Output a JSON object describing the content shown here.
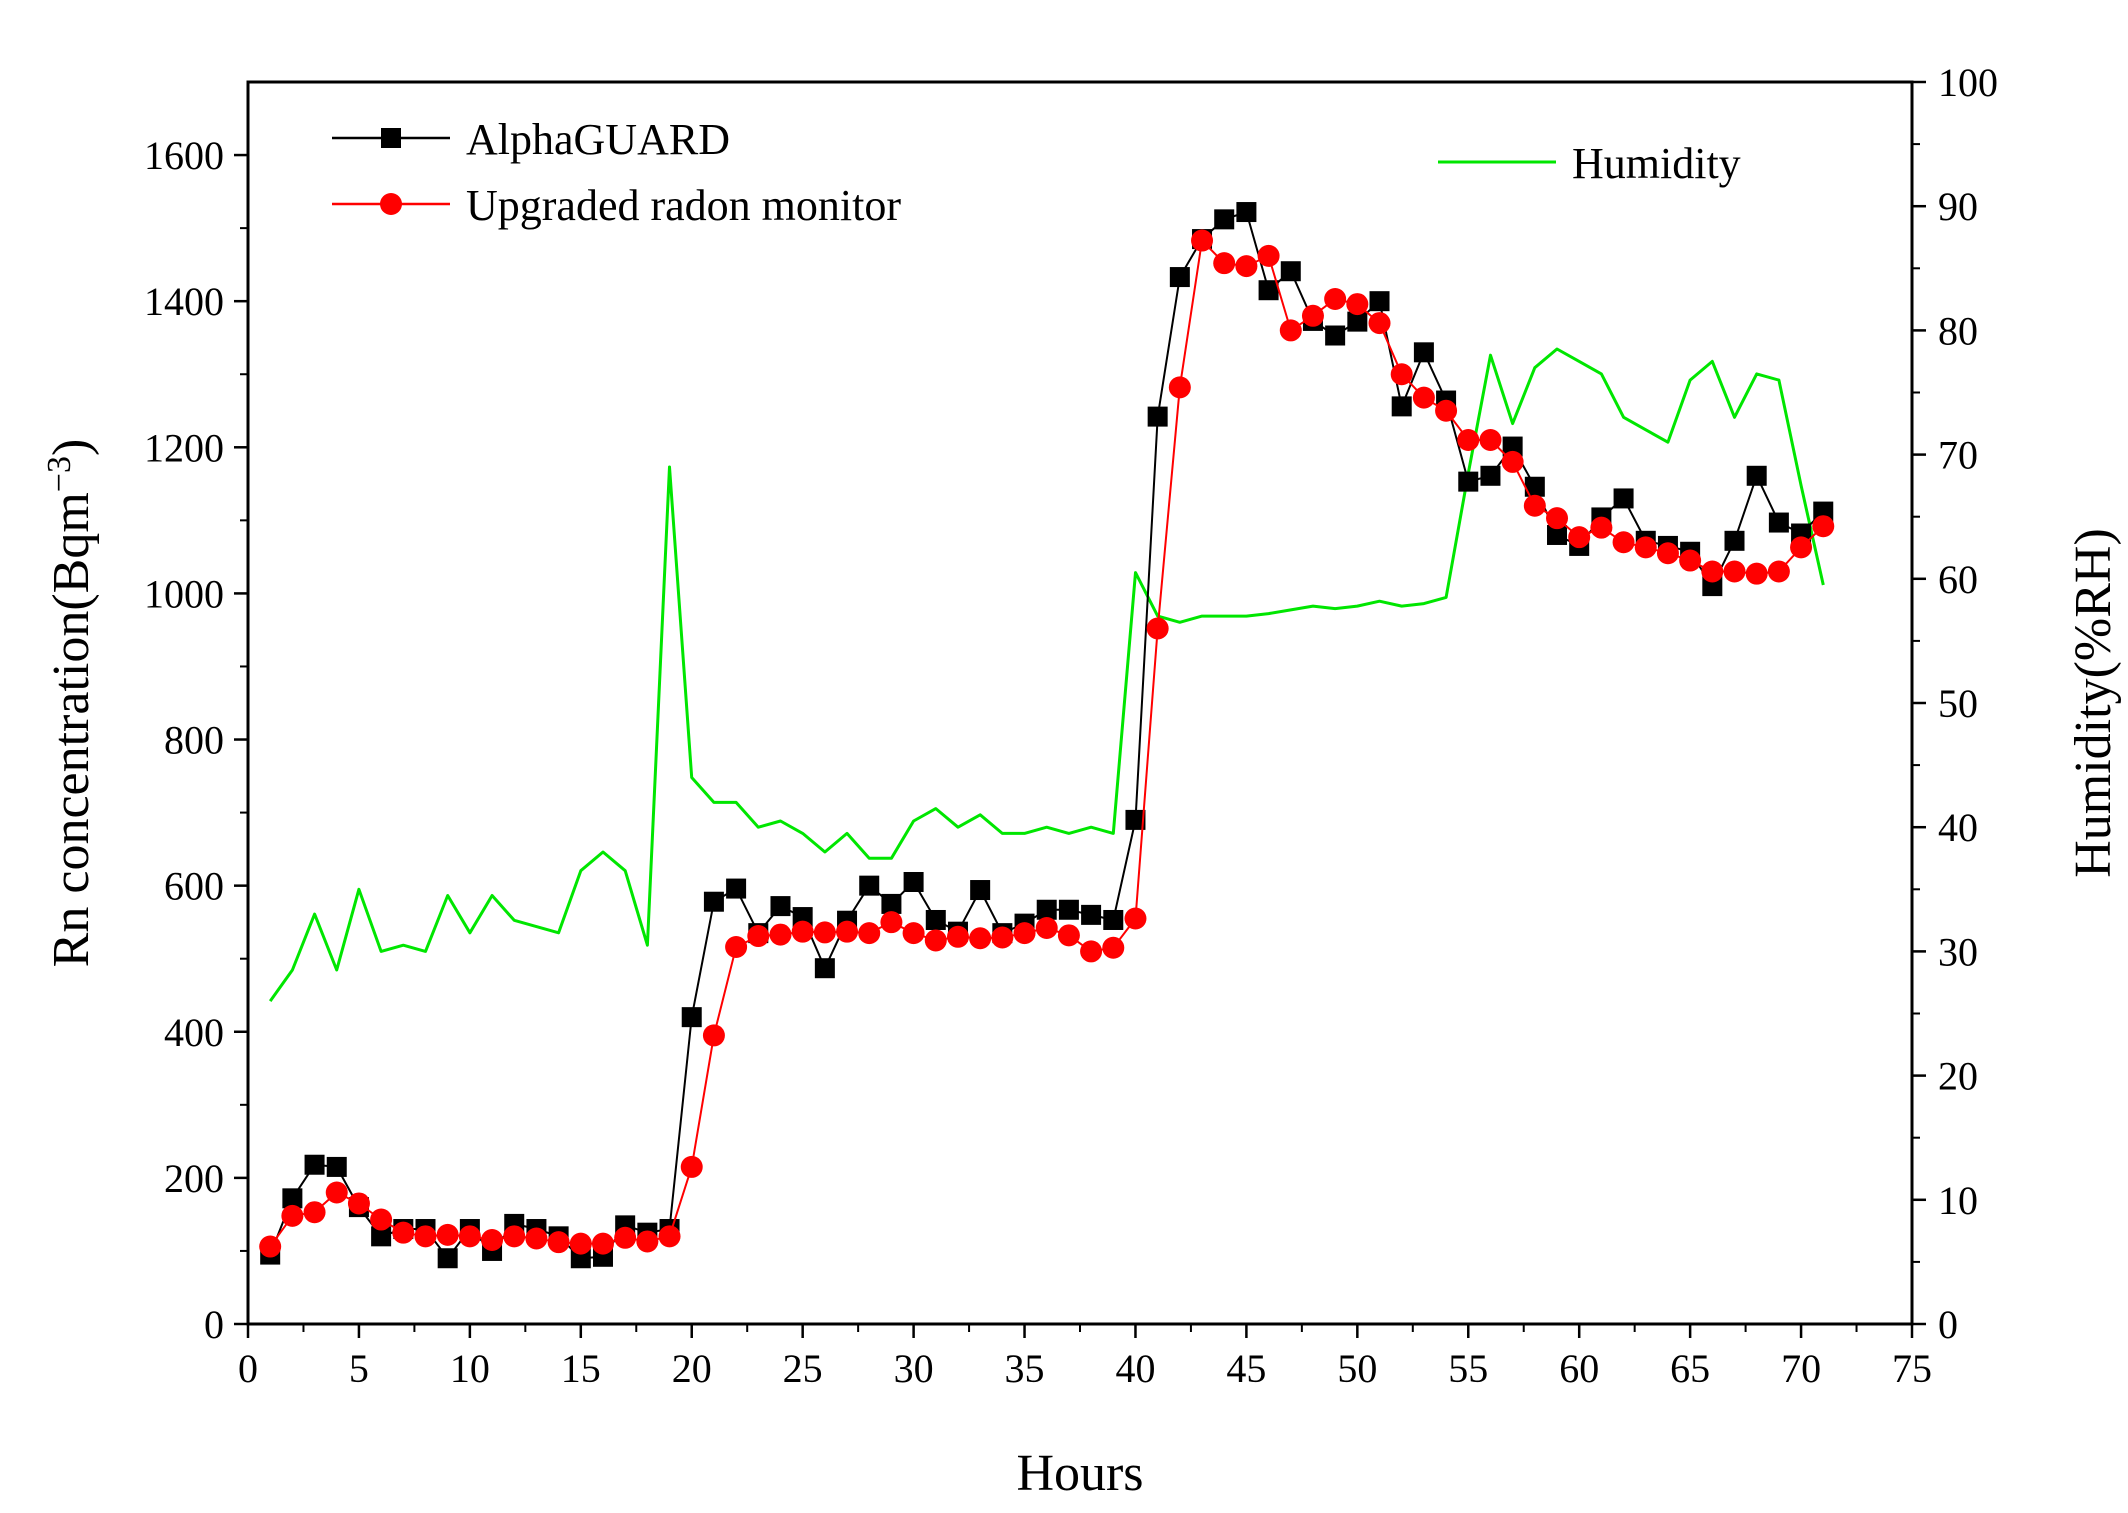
{
  "chart_data": {
    "type": "line",
    "xlabel": "Hours",
    "ylabel_left_prefix": "Rn concentration(Bqm",
    "ylabel_left_exponent": "−3",
    "ylabel_left_suffix": ")",
    "ylabel_right": "Humidity(%RH)",
    "xlim": [
      0,
      75
    ],
    "ylim_left": [
      0,
      1700
    ],
    "ylim_right": [
      0,
      100
    ],
    "x_ticks": [
      "0",
      "5",
      "10",
      "15",
      "20",
      "25",
      "30",
      "35",
      "40",
      "45",
      "50",
      "55",
      "60",
      "65",
      "70",
      "75"
    ],
    "y_left_ticks": [
      "0",
      "200",
      "400",
      "600",
      "800",
      "1000",
      "1200",
      "1400",
      "1600"
    ],
    "y_right_ticks": [
      "0",
      "10",
      "20",
      "30",
      "40",
      "50",
      "60",
      "70",
      "80",
      "90",
      "100"
    ],
    "legend": {
      "alphaguard": "AlphaGUARD",
      "upgraded": "Upgraded radon monitor",
      "humidity": "Humidity"
    },
    "colors": {
      "alphaguard": "#000000",
      "upgraded": "#ff0000",
      "humidity": "#00e600"
    },
    "series": [
      {
        "name": "AlphaGUARD",
        "axis": "left",
        "marker": "square",
        "x": [
          1,
          2,
          3,
          4,
          5,
          6,
          7,
          8,
          9,
          10,
          11,
          12,
          13,
          14,
          15,
          16,
          17,
          18,
          19,
          20,
          21,
          22,
          23,
          24,
          25,
          26,
          27,
          28,
          29,
          30,
          31,
          32,
          33,
          34,
          35,
          36,
          37,
          38,
          39,
          40,
          41,
          42,
          43,
          44,
          45,
          46,
          47,
          48,
          49,
          50,
          51,
          52,
          53,
          54,
          55,
          56,
          57,
          58,
          59,
          60,
          61,
          62,
          63,
          64,
          65,
          66,
          67,
          68,
          69,
          70,
          71
        ],
        "values": [
          95,
          172,
          218,
          215,
          160,
          120,
          130,
          130,
          90,
          130,
          100,
          137,
          130,
          120,
          90,
          92,
          135,
          125,
          130,
          420,
          578,
          596,
          535,
          572,
          557,
          487,
          552,
          600,
          575,
          605,
          553,
          537,
          594,
          535,
          548,
          567,
          567,
          560,
          553,
          690,
          1242,
          1433,
          1485,
          1512,
          1522,
          1415,
          1441,
          1373,
          1353,
          1372,
          1400,
          1256,
          1330,
          1264,
          1153,
          1161,
          1201,
          1146,
          1080,
          1065,
          1104,
          1130,
          1072,
          1065,
          1057,
          1010,
          1072,
          1161,
          1097,
          1082,
          1112
        ]
      },
      {
        "name": "Upgraded radon monitor",
        "axis": "left",
        "marker": "circle",
        "x": [
          1,
          2,
          3,
          4,
          5,
          6,
          7,
          8,
          9,
          10,
          11,
          12,
          13,
          14,
          15,
          16,
          17,
          18,
          19,
          20,
          21,
          22,
          23,
          24,
          25,
          26,
          27,
          28,
          29,
          30,
          31,
          32,
          33,
          34,
          35,
          36,
          37,
          38,
          39,
          40,
          41,
          42,
          43,
          44,
          45,
          46,
          47,
          48,
          49,
          50,
          51,
          52,
          53,
          54,
          55,
          56,
          57,
          58,
          59,
          60,
          61,
          62,
          63,
          64,
          65,
          66,
          67,
          68,
          69,
          70,
          71
        ],
        "values": [
          106,
          148,
          153,
          180,
          165,
          143,
          125,
          120,
          122,
          120,
          115,
          120,
          117,
          112,
          110,
          110,
          118,
          113,
          120,
          215,
          395,
          516,
          531,
          533,
          537,
          536,
          537,
          535,
          550,
          535,
          525,
          530,
          528,
          529,
          535,
          542,
          532,
          510,
          515,
          555,
          952,
          1282,
          1483,
          1452,
          1448,
          1462,
          1360,
          1380,
          1403,
          1396,
          1370,
          1300,
          1268,
          1250,
          1210,
          1210,
          1180,
          1120,
          1103,
          1077,
          1090,
          1070,
          1063,
          1055,
          1045,
          1030,
          1030,
          1027,
          1030,
          1063,
          1092
        ]
      },
      {
        "name": "Humidity",
        "axis": "right",
        "marker": "none",
        "x": [
          1,
          2,
          3,
          4,
          5,
          6,
          7,
          8,
          9,
          10,
          11,
          12,
          13,
          14,
          15,
          16,
          17,
          18,
          19,
          20,
          21,
          22,
          23,
          24,
          25,
          26,
          27,
          28,
          29,
          30,
          31,
          32,
          33,
          34,
          35,
          36,
          37,
          38,
          39,
          40,
          41,
          42,
          43,
          44,
          45,
          46,
          47,
          48,
          49,
          50,
          51,
          52,
          53,
          54,
          55,
          56,
          57,
          58,
          59,
          60,
          61,
          62,
          63,
          64,
          65,
          66,
          67,
          68,
          69,
          70,
          71
        ],
        "values": [
          26,
          28.5,
          33,
          28.5,
          35,
          30,
          30.5,
          30,
          34.5,
          31.5,
          34.5,
          32.5,
          32,
          31.5,
          36.5,
          38,
          36.5,
          30.5,
          69,
          44,
          42,
          42,
          40,
          40.5,
          39.5,
          38,
          39.5,
          37.5,
          37.5,
          40.5,
          41.5,
          40,
          41,
          39.5,
          39.5,
          40,
          39.5,
          40,
          39.5,
          60.5,
          57,
          56.5,
          57,
          57,
          57,
          57.2,
          57.5,
          57.8,
          57.6,
          57.8,
          58.2,
          57.8,
          58,
          58.5,
          68.5,
          78,
          72.5,
          77,
          78.5,
          77.5,
          76.5,
          73,
          72,
          71,
          76,
          77.5,
          73,
          76.5,
          76,
          67.5,
          59.5
        ]
      }
    ]
  }
}
